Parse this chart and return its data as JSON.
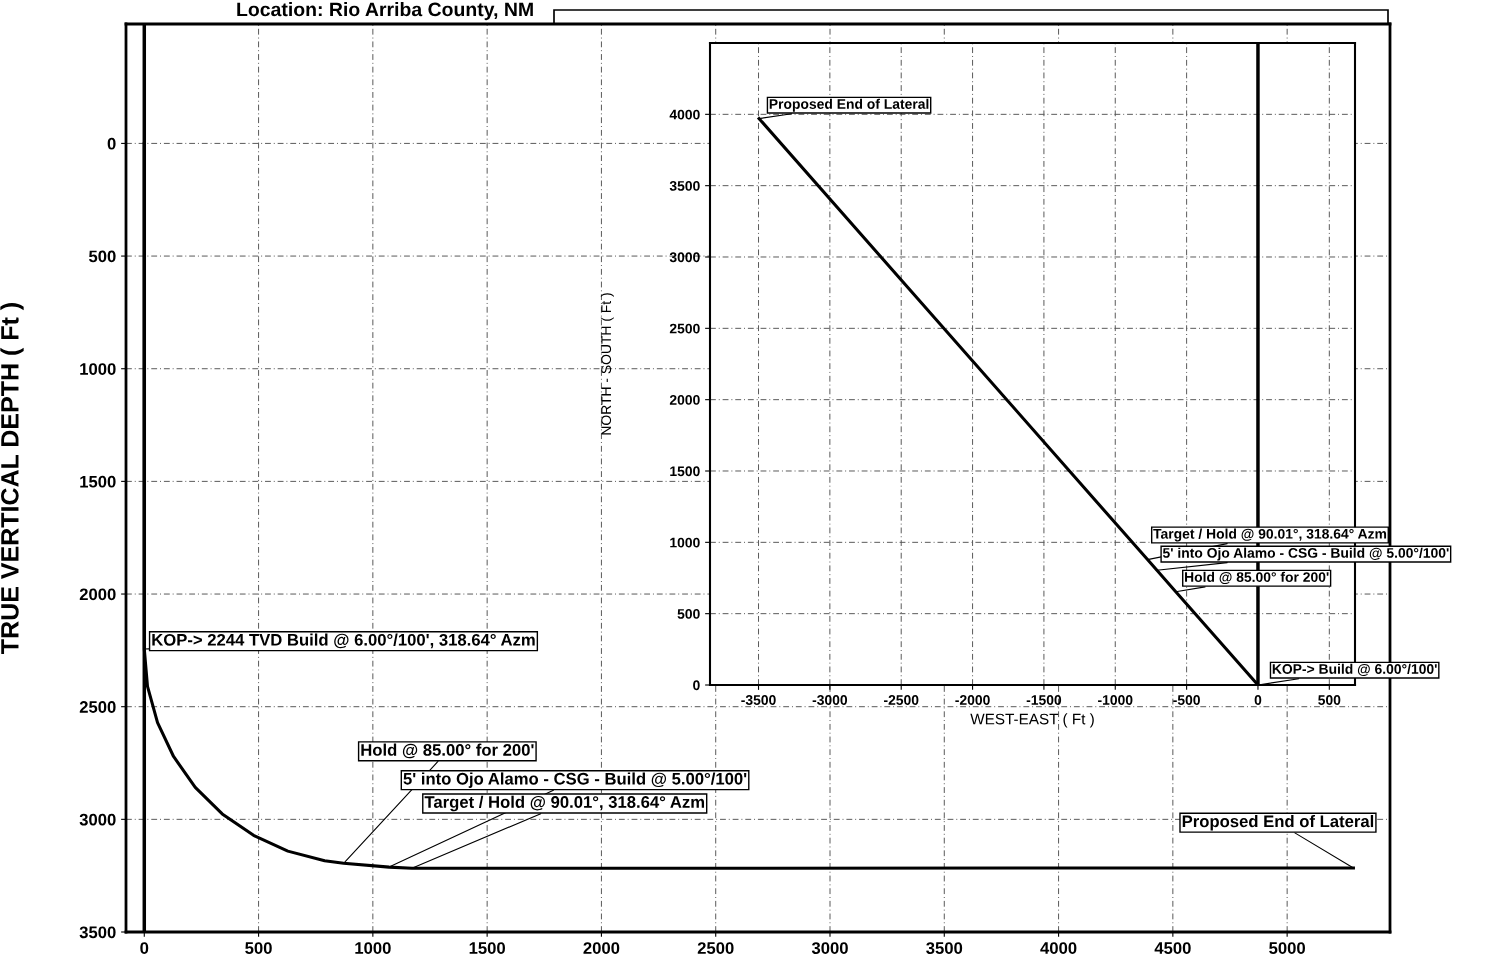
{
  "chart_data": [
    {
      "type": "line",
      "title": "Location: Rio Arriba County, NM",
      "ylabel": "TRUE VERTICAL DEPTH ( Ft )",
      "series": [
        {
          "color": "#000000",
          "x": [
            0,
            0,
            14,
            58,
            128,
            223,
            341,
            478,
            628,
            789,
            872,
            1071,
            1171,
            5290
          ],
          "values": [
            0,
            2244,
            2410,
            2571,
            2721,
            2858,
            2976,
            3071,
            3141,
            3184,
            3195,
            3212,
            3217,
            3216
          ]
        }
      ],
      "xlim": [
        -80,
        5450
      ],
      "ylim": [
        3500,
        -530
      ],
      "xticks": [
        0,
        500,
        1000,
        1500,
        2000,
        2500,
        3000,
        3500,
        4000,
        4500,
        5000
      ],
      "yticks": [
        0,
        500,
        1000,
        1500,
        2000,
        2500,
        3000,
        3500
      ],
      "grid": true,
      "line_style": "solid",
      "marker": "none",
      "ref_lines": [
        {
          "axis": "x",
          "value": 0,
          "color": "#000000"
        }
      ],
      "annotations": [
        {
          "text": "KOP-> 2244 TVD Build @ 6.00°/100', 318.64° Azm",
          "x": 0,
          "y": 2244
        },
        {
          "text": "Hold @ 85.00° for 200'",
          "x": 872,
          "y": 3195
        },
        {
          "text": "5' into Ojo Alamo - CSG - Build @ 5.00°/100'",
          "x": 1071,
          "y": 3212
        },
        {
          "text": "Target / Hold @ 90.01°, 318.64° Azm",
          "x": 1171,
          "y": 3217
        },
        {
          "text": "Proposed End of Lateral",
          "x": 5290,
          "y": 3216
        }
      ]
    },
    {
      "type": "line",
      "xlabel": "WEST-EAST ( Ft )",
      "ylabel": "NORTH - SOUTH ( Ft )",
      "series": [
        {
          "color": "#000000",
          "x": [
            0,
            -576,
            -708,
            -774,
            -3496
          ],
          "values": [
            0,
            654,
            804,
            879,
            3970
          ]
        }
      ],
      "xlim": [
        -3840,
        680
      ],
      "ylim": [
        0,
        4500
      ],
      "xticks": [
        -3500,
        -3000,
        -2500,
        -2000,
        -1500,
        -1000,
        -500,
        0,
        500
      ],
      "yticks": [
        0,
        500,
        1000,
        1500,
        2000,
        2500,
        3000,
        3500,
        4000
      ],
      "grid": true,
      "line_style": "solid",
      "marker": "none",
      "ref_lines": [
        {
          "axis": "x",
          "value": 0,
          "color": "#000000"
        }
      ],
      "annotations": [
        {
          "text": "Proposed End of Lateral",
          "x": -3496,
          "y": 3970
        },
        {
          "text": "Target / Hold @ 90.01°, 318.64° Azm",
          "x": -774,
          "y": 879
        },
        {
          "text": "5' into Ojo Alamo - CSG - Build @ 5.00°/100'",
          "x": -708,
          "y": 804
        },
        {
          "text": "Hold @ 85.00° for 200'",
          "x": -576,
          "y": 654
        },
        {
          "text": "KOP-> Build @ 6.00°/100'",
          "x": 0,
          "y": 0
        }
      ]
    }
  ]
}
